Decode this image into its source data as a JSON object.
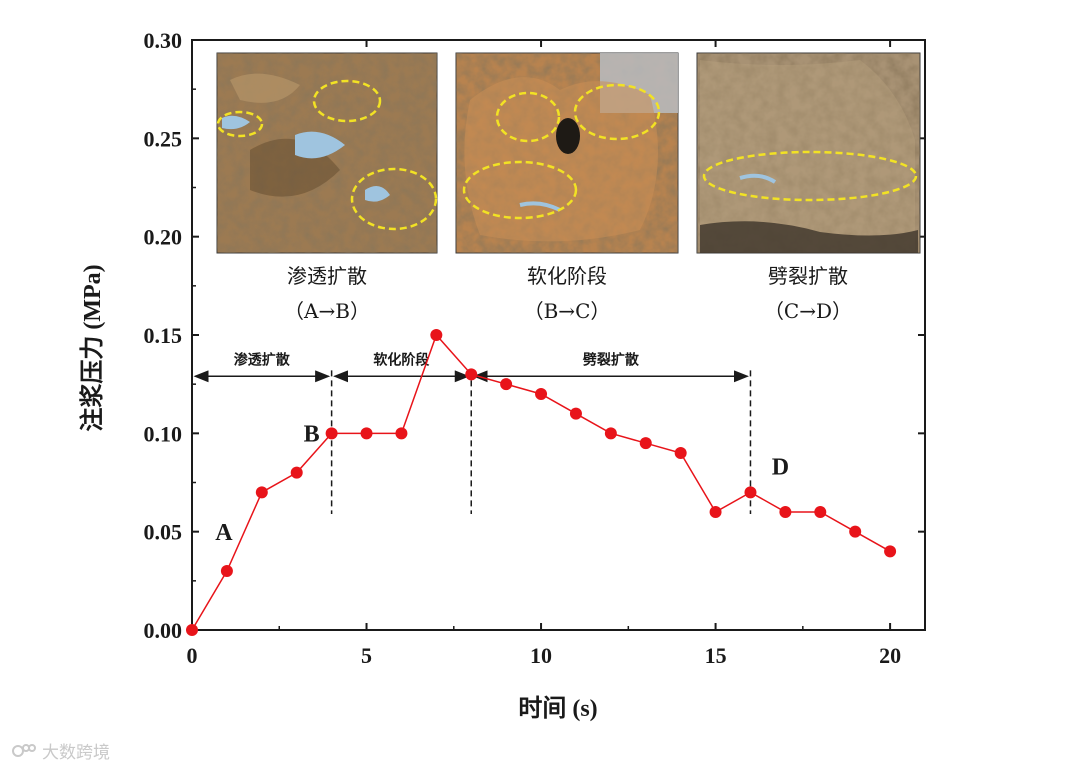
{
  "chart_data": {
    "type": "line",
    "xlabel": "时间 (s)",
    "ylabel": "注浆压力 (MPa)",
    "xlim": [
      0,
      21
    ],
    "ylim": [
      0,
      0.3
    ],
    "x_ticks": [
      "0",
      "5",
      "10",
      "15",
      "20"
    ],
    "y_ticks": [
      "0.00",
      "0.05",
      "0.10",
      "0.15",
      "0.20",
      "0.25",
      "0.30"
    ],
    "series": [
      {
        "x": [
          0,
          1,
          2,
          3,
          4,
          5,
          6,
          7,
          8,
          9,
          10,
          11,
          12,
          13,
          14,
          15,
          16,
          17,
          18,
          19,
          20
        ],
        "values": [
          0.0,
          0.03,
          0.07,
          0.08,
          0.1,
          0.1,
          0.1,
          0.15,
          0.13,
          0.125,
          0.12,
          0.11,
          0.1,
          0.095,
          0.09,
          0.06,
          0.07,
          0.06,
          0.06,
          0.05,
          0.04
        ]
      }
    ],
    "point_labels": [
      {
        "text": "A",
        "x": 1,
        "y": 0.03
      },
      {
        "text": "B",
        "x": 4,
        "y": 0.1
      },
      {
        "text": "D",
        "x": 16,
        "y": 0.07
      }
    ],
    "dividers_x": [
      4,
      8,
      16
    ],
    "phases": [
      {
        "label": "渗透扩散",
        "x_start": 0,
        "x_end": 4
      },
      {
        "label": "软化阶段",
        "x_start": 4,
        "x_end": 8
      },
      {
        "label": "劈裂扩散",
        "x_start": 8,
        "x_end": 16
      }
    ],
    "grid": false,
    "colors": {
      "line": "#e8141a",
      "marker": "#e8141a",
      "ellipse": "#f2e224"
    }
  },
  "photos": [
    {
      "caption": "渗透扩散",
      "sub": "（A→B）"
    },
    {
      "caption": "软化阶段",
      "sub": "（B→C）"
    },
    {
      "caption": "劈裂扩散",
      "sub": "（C→D）"
    }
  ],
  "watermark": {
    "text": "大数跨境"
  }
}
